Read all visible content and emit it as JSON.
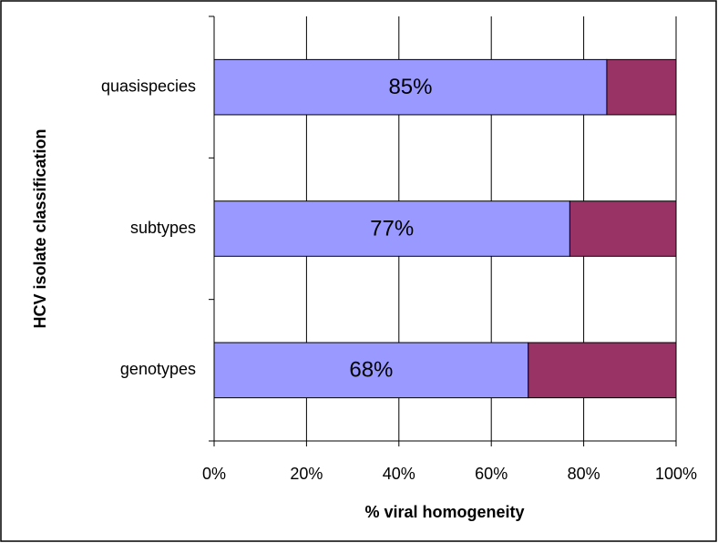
{
  "chart_data": {
    "type": "stacked-barh",
    "categories": [
      "genotypes",
      "subtypes",
      "quasispecies"
    ],
    "series": [
      {
        "color": "#9999ff",
        "values": [
          68,
          77,
          85
        ],
        "value_labels": [
          "68%",
          "77%",
          "85%"
        ]
      },
      {
        "color": "#993366",
        "values": [
          32,
          23,
          15
        ]
      }
    ],
    "xlabel": "% viral homogeneity",
    "ylabel": "HCV isolate classification",
    "xlim": [
      0,
      100
    ],
    "xticks": [
      {
        "value": 0,
        "label": "0%"
      },
      {
        "value": 20,
        "label": "20%"
      },
      {
        "value": 40,
        "label": "40%"
      },
      {
        "value": 60,
        "label": "60%"
      },
      {
        "value": 80,
        "label": "80%"
      },
      {
        "value": 100,
        "label": "100%"
      }
    ],
    "grid": true
  }
}
